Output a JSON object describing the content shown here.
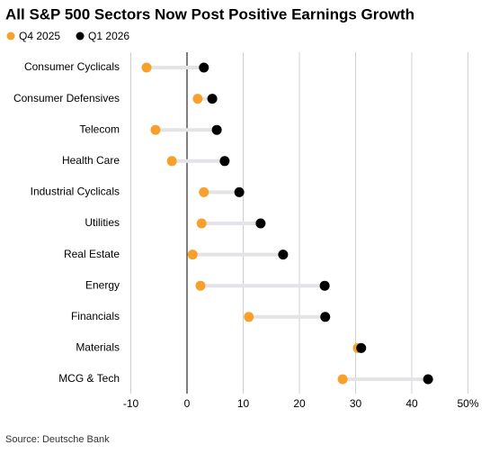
{
  "chart_data": {
    "type": "dumbbell",
    "title": "All S&P 500 Sectors Now Post Positive Earnings Growth",
    "source": "Source: Deutsche Bank",
    "categories": [
      "Consumer Cyclicals",
      "Consumer Defensives",
      "Telecom",
      "Health Care",
      "Industrial Cyclicals",
      "Utilities",
      "Real Estate",
      "Energy",
      "Financials",
      "Materials",
      "MCG & Tech"
    ],
    "series": [
      {
        "name": "Q4 2025",
        "color": "#f7a12c",
        "values": [
          -7.2,
          1.9,
          -5.6,
          -2.7,
          3.0,
          2.6,
          1.0,
          2.4,
          11.0,
          30.4,
          27.7
        ]
      },
      {
        "name": "Q1 2026",
        "color": "#000000",
        "values": [
          3.0,
          4.5,
          5.3,
          6.7,
          9.3,
          13.1,
          17.1,
          24.5,
          24.6,
          31.0,
          42.9
        ]
      }
    ],
    "xlim": [
      -11,
      51
    ],
    "xticks": [
      -10,
      0,
      10,
      20,
      30,
      40,
      {
        "value": 50,
        "label": "50%"
      }
    ],
    "grid": true,
    "connector_color": "#e3e3e8",
    "zero_line_color": "#000000"
  }
}
